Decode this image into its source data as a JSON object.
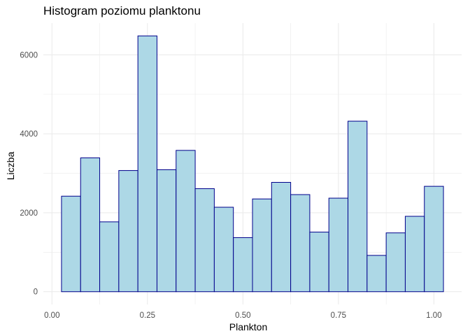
{
  "chart_data": {
    "type": "bar",
    "title": "Histogram poziomu planktonu",
    "xlabel": "Plankton",
    "ylabel": "Liczba",
    "bin_width": 0.05,
    "bins": [
      {
        "x": 0.05,
        "value": 2420
      },
      {
        "x": 0.1,
        "value": 3390
      },
      {
        "x": 0.15,
        "value": 1770
      },
      {
        "x": 0.2,
        "value": 3070
      },
      {
        "x": 0.25,
        "value": 6480
      },
      {
        "x": 0.3,
        "value": 3090
      },
      {
        "x": 0.35,
        "value": 3580
      },
      {
        "x": 0.4,
        "value": 2610
      },
      {
        "x": 0.45,
        "value": 2140
      },
      {
        "x": 0.5,
        "value": 1370
      },
      {
        "x": 0.55,
        "value": 2350
      },
      {
        "x": 0.6,
        "value": 2770
      },
      {
        "x": 0.65,
        "value": 2460
      },
      {
        "x": 0.7,
        "value": 1510
      },
      {
        "x": 0.75,
        "value": 2370
      },
      {
        "x": 0.8,
        "value": 4320
      },
      {
        "x": 0.85,
        "value": 920
      },
      {
        "x": 0.9,
        "value": 1490
      },
      {
        "x": 0.95,
        "value": 1910
      },
      {
        "x": 1.0,
        "value": 2670
      }
    ],
    "xlim": [
      -0.0225,
      1.0725
    ],
    "ylim": [
      -324,
      6804
    ],
    "x_ticks": [
      0.0,
      0.25,
      0.5,
      0.75,
      1.0
    ],
    "x_tick_labels": [
      "0.00",
      "0.25",
      "0.50",
      "0.75",
      "1.00"
    ],
    "y_ticks": [
      0,
      2000,
      4000,
      6000
    ],
    "y_tick_labels": [
      "0",
      "2000",
      "4000",
      "6000"
    ],
    "grid": true,
    "bar_fill": "#add8e6",
    "bar_stroke": "#00008b",
    "grid_color": "#ebebeb"
  }
}
